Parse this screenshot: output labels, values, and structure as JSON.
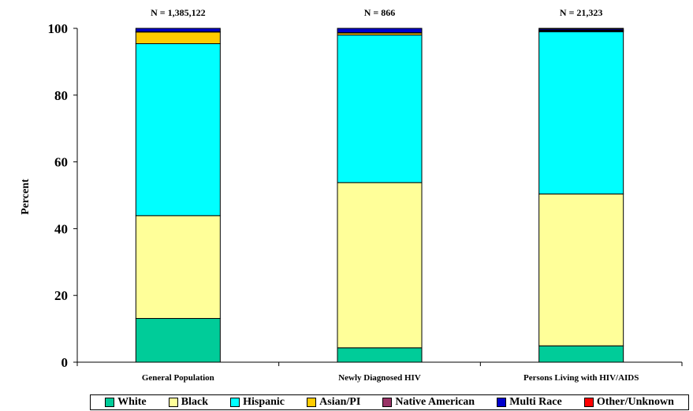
{
  "chart_data": {
    "type": "bar",
    "stacked": true,
    "ylabel": "Percent",
    "xlabel": "",
    "ylim": [
      0,
      100
    ],
    "yticks": [
      "0",
      "20",
      "40",
      "60",
      "80",
      "100"
    ],
    "categories": [
      "General Population",
      "Newly Diagnosed HIV",
      "Persons Living with HIV/AIDS"
    ],
    "annotations": [
      "N = 1,385,122",
      "N = 866",
      "N = 21,323"
    ],
    "legend_position": "bottom",
    "series": [
      {
        "name": "White",
        "color": "#00CC99",
        "values": [
          13.1,
          4.3,
          4.9
        ]
      },
      {
        "name": "Black",
        "color": "#FFFF99",
        "values": [
          30.8,
          49.5,
          45.5
        ]
      },
      {
        "name": "Hispanic",
        "color": "#00FFFF",
        "values": [
          51.5,
          44.2,
          48.6
        ]
      },
      {
        "name": "Asian/PI",
        "color": "#FFCC00",
        "values": [
          3.5,
          0.6,
          0.2
        ]
      },
      {
        "name": "Native American",
        "color": "#993366",
        "values": [
          0.1,
          0.1,
          0.2
        ]
      },
      {
        "name": "Multi Race",
        "color": "#0000CC",
        "values": [
          1.0,
          1.3,
          0.4
        ]
      },
      {
        "name": "Other/Unknown",
        "color": "#FF0000",
        "values": [
          0.0,
          0.0,
          0.2
        ]
      }
    ]
  }
}
